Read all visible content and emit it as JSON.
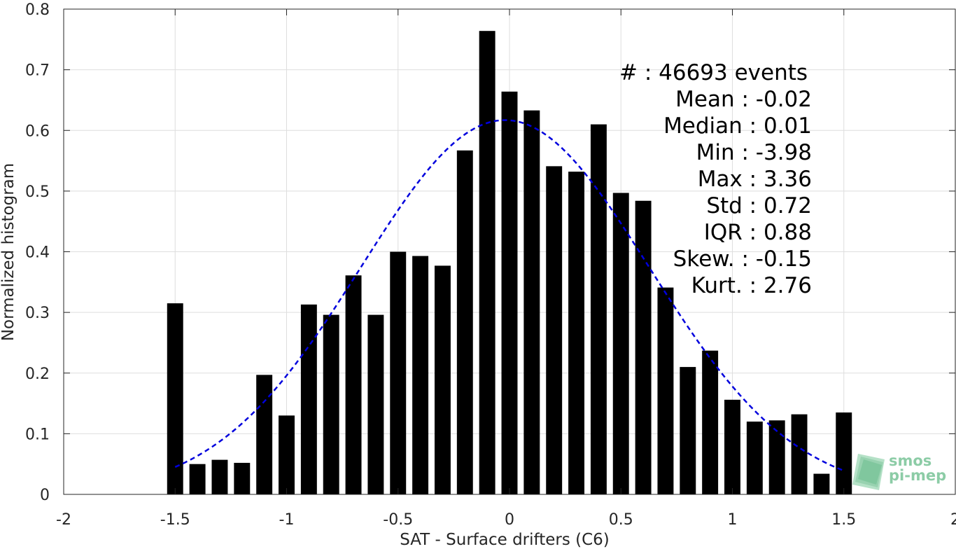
{
  "chart_data": {
    "type": "bar",
    "title": "",
    "xlabel": "SAT - Surface drifters (C6)",
    "ylabel": "Normalized histogram",
    "xlim": [
      -2,
      2
    ],
    "ylim": [
      0,
      0.8
    ],
    "xticks": [
      -2,
      -1.5,
      -1,
      -0.5,
      0,
      0.5,
      1,
      1.5,
      2
    ],
    "xtick_labels": [
      "-2",
      "-1.5",
      "-1",
      "-0.5",
      "0",
      "0.5",
      "1",
      "1.5",
      "2"
    ],
    "yticks": [
      0,
      0.1,
      0.2,
      0.3,
      0.4,
      0.5,
      0.6,
      0.7,
      0.8
    ],
    "ytick_labels": [
      "0",
      "0.1",
      "0.2",
      "0.3",
      "0.4",
      "0.5",
      "0.6",
      "0.7",
      "0.8"
    ],
    "grid": true,
    "bar_color": "#000000",
    "fit_color": "#0000dd",
    "bins": [
      -1.5,
      -1.4,
      -1.3,
      -1.2,
      -1.1,
      -1.0,
      -0.9,
      -0.8,
      -0.7,
      -0.6,
      -0.5,
      -0.4,
      -0.3,
      -0.2,
      -0.1,
      0.0,
      0.1,
      0.2,
      0.3,
      0.4,
      0.5,
      0.6,
      0.7,
      0.8,
      0.9,
      1.0,
      1.1,
      1.2,
      1.3,
      1.4,
      1.5
    ],
    "values": [
      0.315,
      0.05,
      0.057,
      0.052,
      0.197,
      0.13,
      0.313,
      0.296,
      0.361,
      0.296,
      0.4,
      0.393,
      0.377,
      0.567,
      0.764,
      0.664,
      0.633,
      0.541,
      0.532,
      0.61,
      0.497,
      0.484,
      0.341,
      0.21,
      0.237,
      0.156,
      0.12,
      0.122,
      0.132,
      0.034,
      0.135
    ],
    "fit": {
      "type": "gaussian",
      "mean": -0.02,
      "peak": 0.617,
      "sigma": 0.647,
      "x_range": [
        -1.5,
        1.5
      ]
    },
    "annotations": [
      "#  : 46693 events",
      "Mean : -0.02",
      "Median : 0.01",
      "Min : -3.98",
      "Max : 3.36",
      "Std : 0.72",
      "IQR : 0.88",
      "Skew. : -0.15",
      "Kurt. : 2.76"
    ]
  },
  "logo": {
    "line1": "smos",
    "line2": "pi-mep",
    "color": "#8ccca6"
  }
}
